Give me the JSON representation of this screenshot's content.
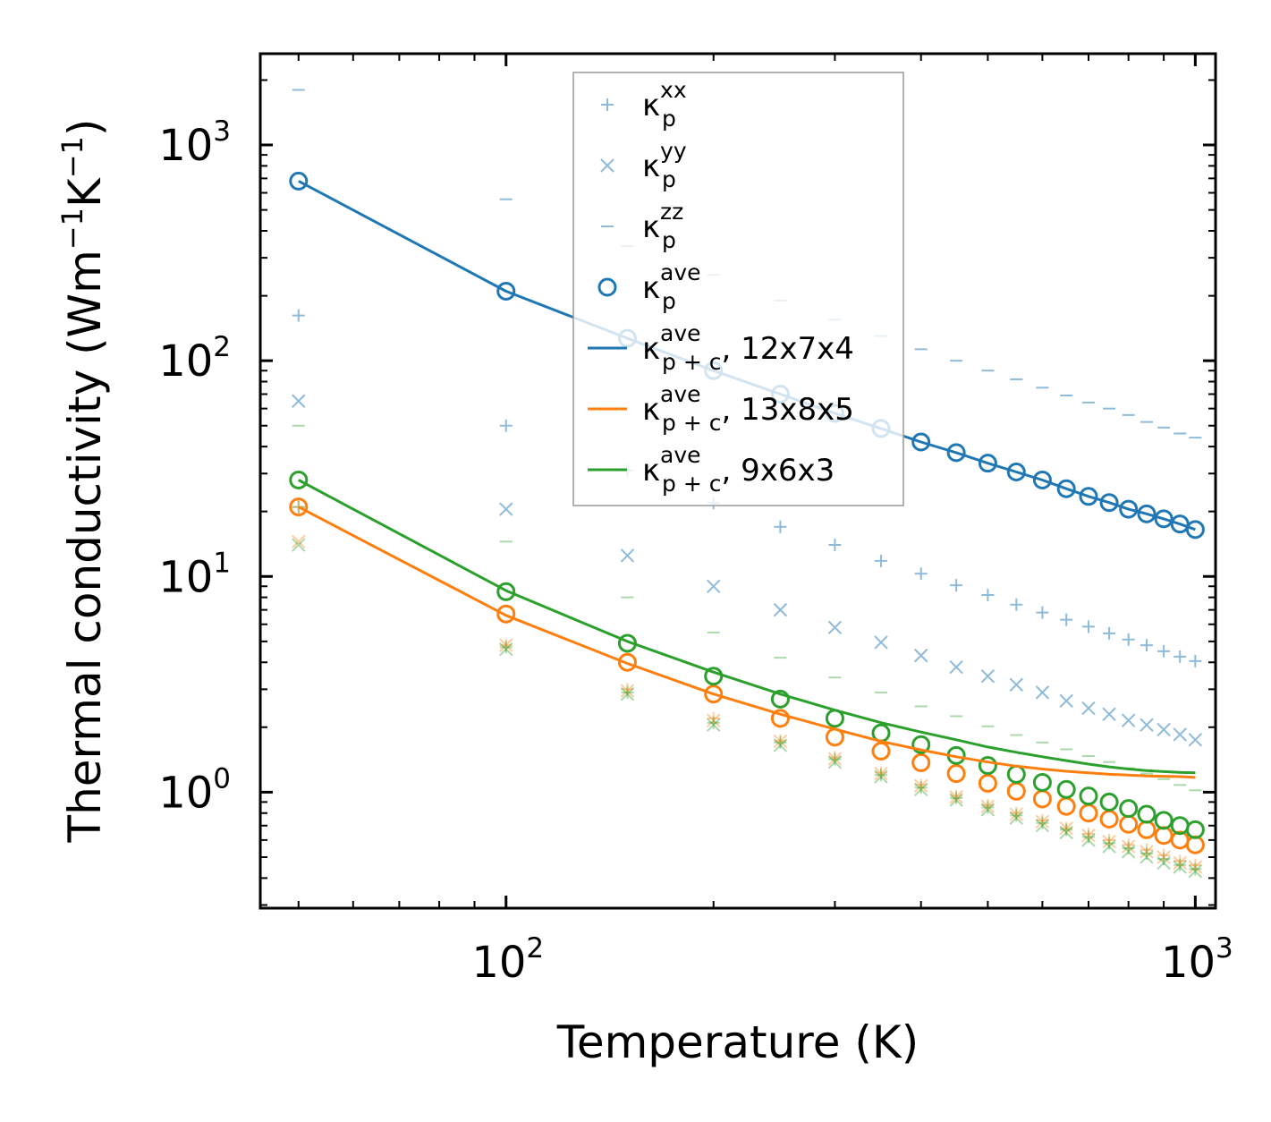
{
  "chart_data": {
    "type": "scatter",
    "scale": {
      "x": "log",
      "y": "log"
    },
    "xlim": [
      44,
      1070
    ],
    "ylim": [
      0.29,
      2650
    ],
    "xlabel": "Temperature (K)",
    "ylabel": "Thermal conductivity (Wm⁻¹K⁻¹)",
    "ylabel_parts": {
      "main": "Thermal conductivity (Wm",
      "exp1": "−1",
      "mid": "K",
      "exp2": "−1",
      "end": ")"
    },
    "x_ticks": [
      {
        "base": "10",
        "exp": "2",
        "value": 100
      },
      {
        "base": "10",
        "exp": "3",
        "value": 1000
      }
    ],
    "y_ticks": [
      {
        "base": "10",
        "exp": "0",
        "value": 1
      },
      {
        "base": "10",
        "exp": "1",
        "value": 10
      },
      {
        "base": "10",
        "exp": "2",
        "value": 100
      },
      {
        "base": "10",
        "exp": "3",
        "value": 1000
      }
    ],
    "x": [
      50,
      100,
      150,
      200,
      250,
      300,
      350,
      400,
      450,
      500,
      550,
      600,
      650,
      700,
      750,
      800,
      850,
      900,
      950,
      1000
    ],
    "colors": {
      "blue": "#1f77b4",
      "orange": "#ff7f0e",
      "green": "#2ca02c"
    },
    "point_series": [
      {
        "group": "12x7x4",
        "component": "xx",
        "marker": "plus",
        "color": "#1f77b4",
        "alpha": 0.5,
        "values": [
          162,
          50,
          31,
          21.9,
          17,
          14,
          11.8,
          10.3,
          9.1,
          8.2,
          7.4,
          6.8,
          6.3,
          5.85,
          5.45,
          5.1,
          4.8,
          4.5,
          4.25,
          4.05
        ]
      },
      {
        "group": "12x7x4",
        "component": "yy",
        "marker": "x",
        "color": "#1f77b4",
        "alpha": 0.5,
        "values": [
          65,
          20.5,
          12.5,
          9.0,
          7.0,
          5.8,
          4.95,
          4.3,
          3.8,
          3.45,
          3.15,
          2.9,
          2.65,
          2.45,
          2.3,
          2.15,
          2.05,
          1.95,
          1.85,
          1.75
        ]
      },
      {
        "group": "12x7x4",
        "component": "zz",
        "marker": "dash",
        "color": "#1f77b4",
        "alpha": 0.5,
        "values": [
          1800,
          560,
          340,
          250,
          190,
          155,
          130,
          113,
          100,
          90,
          82,
          75,
          69,
          64,
          60,
          56,
          52,
          49,
          46,
          44
        ]
      },
      {
        "group": "12x7x4",
        "component": "ave",
        "marker": "circle",
        "color": "#1f77b4",
        "alpha": 1,
        "values": [
          680,
          210,
          127,
          90,
          70,
          57,
          48.5,
          42,
          37.5,
          33.5,
          30.5,
          28,
          25.5,
          23.5,
          22,
          20.5,
          19.5,
          18.5,
          17.5,
          16.5
        ]
      },
      {
        "group": "13x8x5",
        "component": "xx",
        "marker": "plus",
        "color": "#ff7f0e",
        "alpha": 0.4,
        "values": [
          21,
          4.8,
          3.0,
          2.2,
          1.73,
          1.45,
          1.23,
          1.08,
          0.96,
          0.87,
          0.8,
          0.74,
          0.68,
          0.64,
          0.6,
          0.57,
          0.54,
          0.51,
          0.48,
          0.46
        ]
      },
      {
        "group": "13x8x5",
        "component": "yy",
        "marker": "x",
        "color": "#ff7f0e",
        "alpha": 0.4,
        "values": [
          14.5,
          4.8,
          2.95,
          2.15,
          1.72,
          1.43,
          1.22,
          1.07,
          0.95,
          0.86,
          0.79,
          0.73,
          0.68,
          0.63,
          0.59,
          0.56,
          0.53,
          0.5,
          0.47,
          0.45
        ]
      },
      {
        "group": "13x8x5",
        "component": "ave",
        "marker": "circle",
        "color": "#ff7f0e",
        "alpha": 1,
        "values": [
          21,
          6.7,
          4.0,
          2.85,
          2.2,
          1.8,
          1.55,
          1.37,
          1.22,
          1.1,
          1.01,
          0.93,
          0.86,
          0.8,
          0.75,
          0.71,
          0.67,
          0.63,
          0.6,
          0.57
        ]
      },
      {
        "group": "9x6x3",
        "component": "xx",
        "marker": "plus",
        "color": "#2ca02c",
        "alpha": 0.4,
        "values": [
          21,
          4.7,
          2.9,
          2.1,
          1.7,
          1.42,
          1.2,
          1.05,
          0.94,
          0.85,
          0.78,
          0.72,
          0.67,
          0.62,
          0.58,
          0.55,
          0.52,
          0.49,
          0.46,
          0.44
        ]
      },
      {
        "group": "9x6x3",
        "component": "yy",
        "marker": "x",
        "color": "#2ca02c",
        "alpha": 0.4,
        "values": [
          14,
          4.6,
          2.85,
          2.05,
          1.65,
          1.38,
          1.18,
          1.03,
          0.92,
          0.83,
          0.76,
          0.7,
          0.65,
          0.6,
          0.56,
          0.53,
          0.5,
          0.47,
          0.45,
          0.43
        ]
      },
      {
        "group": "9x6x3",
        "component": "zz",
        "marker": "dash",
        "color": "#2ca02c",
        "alpha": 0.4,
        "values": [
          50,
          14.5,
          8.0,
          5.5,
          4.2,
          3.4,
          2.9,
          2.5,
          2.25,
          2.02,
          1.84,
          1.7,
          1.58,
          1.47,
          1.38,
          1.29,
          1.22,
          1.15,
          1.08,
          1.02
        ]
      },
      {
        "group": "9x6x3",
        "component": "ave",
        "marker": "circle",
        "color": "#2ca02c",
        "alpha": 1,
        "values": [
          28,
          8.5,
          4.9,
          3.45,
          2.7,
          2.2,
          1.88,
          1.66,
          1.48,
          1.33,
          1.21,
          1.11,
          1.03,
          0.96,
          0.9,
          0.84,
          0.79,
          0.74,
          0.7,
          0.67
        ]
      }
    ],
    "line_series": [
      {
        "group": "12x7x4",
        "color": "#1f77b4",
        "values": [
          680,
          210,
          127,
          90,
          70,
          57,
          48.5,
          42,
          37.5,
          33.5,
          30.5,
          28,
          25.5,
          23.5,
          22,
          20.5,
          19.5,
          18.5,
          17.5,
          16.5
        ]
      },
      {
        "group": "13x8x5",
        "color": "#ff7f0e",
        "values": [
          21,
          6.6,
          3.95,
          2.85,
          2.3,
          1.96,
          1.72,
          1.57,
          1.46,
          1.38,
          1.32,
          1.28,
          1.25,
          1.23,
          1.21,
          1.2,
          1.19,
          1.185,
          1.18,
          1.17
        ]
      },
      {
        "group": "9x6x3",
        "color": "#2ca02c",
        "values": [
          28,
          8.6,
          5.0,
          3.6,
          2.85,
          2.4,
          2.1,
          1.9,
          1.75,
          1.62,
          1.53,
          1.46,
          1.4,
          1.35,
          1.31,
          1.28,
          1.26,
          1.245,
          1.235,
          1.23
        ]
      }
    ],
    "legend": {
      "position": "upper-center",
      "entries": [
        {
          "marker": "plus",
          "color": "#1f77b4",
          "alpha": 0.5,
          "base": "κ",
          "sub": "p",
          "sup": "xx",
          "suffix": ""
        },
        {
          "marker": "x",
          "color": "#1f77b4",
          "alpha": 0.5,
          "base": "κ",
          "sub": "p",
          "sup": "yy",
          "suffix": ""
        },
        {
          "marker": "dash",
          "color": "#1f77b4",
          "alpha": 0.5,
          "base": "κ",
          "sub": "p",
          "sup": "zz",
          "suffix": ""
        },
        {
          "marker": "circle",
          "color": "#1f77b4",
          "alpha": 1,
          "base": "κ",
          "sub": "p",
          "sup": "ave",
          "suffix": ""
        },
        {
          "marker": "line",
          "color": "#1f77b4",
          "alpha": 1,
          "base": "κ",
          "sub": "p + c",
          "sup": "ave",
          "suffix": ", 12x7x4"
        },
        {
          "marker": "line",
          "color": "#ff7f0e",
          "alpha": 1,
          "base": "κ",
          "sub": "p + c",
          "sup": "ave",
          "suffix": ", 13x8x5"
        },
        {
          "marker": "line",
          "color": "#2ca02c",
          "alpha": 1,
          "base": "κ",
          "sub": "p + c",
          "sup": "ave",
          "suffix": ", 9x6x3"
        }
      ]
    }
  }
}
